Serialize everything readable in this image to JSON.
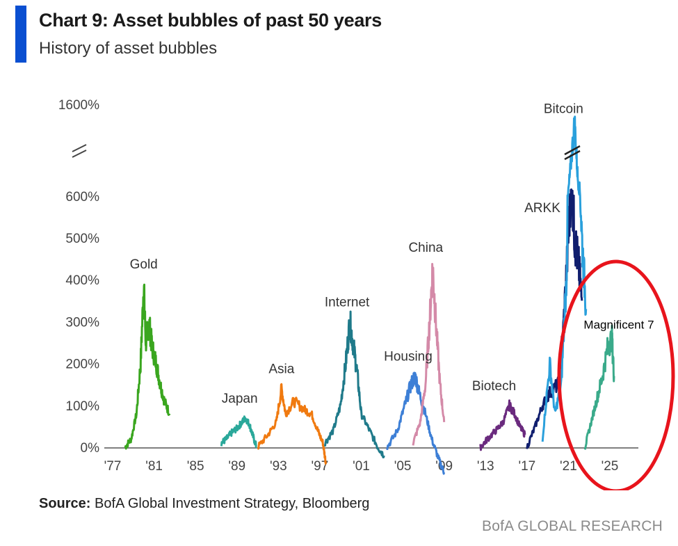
{
  "header": {
    "title": "Chart 9: Asset bubbles of past 50 years",
    "subtitle": "History of asset bubbles",
    "accent_color": "#0a4fd1"
  },
  "footer": {
    "source_label": "Source:",
    "source_text": " BofA Global Investment Strategy, Bloomberg",
    "brand": "BofA GLOBAL RESEARCH"
  },
  "chart_data": {
    "type": "line",
    "title": "Asset bubbles of past 50 years",
    "xlabel": "",
    "ylabel": "",
    "ylim": [
      0,
      1600
    ],
    "y_axis_break": true,
    "x_ticks": [
      "'77",
      "'81",
      "'85",
      "'89",
      "'93",
      "'97",
      "'01",
      "'05",
      "'09",
      "'13",
      "'17",
      "'21",
      "'25"
    ],
    "y_ticks": [
      {
        "value": 0,
        "label": "0%"
      },
      {
        "value": 100,
        "label": "100%"
      },
      {
        "value": 200,
        "label": "200%"
      },
      {
        "value": 300,
        "label": "300%"
      },
      {
        "value": 400,
        "label": "400%"
      },
      {
        "value": 500,
        "label": "500%"
      },
      {
        "value": 600,
        "label": "600%"
      },
      {
        "value": 1600,
        "label": "1600%"
      }
    ],
    "grid": false,
    "series": [
      {
        "name": "Gold",
        "color": "#3aa61f",
        "x": [
          1978.2,
          1978.8,
          1979.3,
          1979.7,
          1980.0,
          1980.2,
          1980.5,
          1980.8,
          1981.2,
          1981.6,
          1982.0,
          1982.5
        ],
        "values": [
          0,
          20,
          80,
          200,
          390,
          250,
          300,
          240,
          200,
          150,
          110,
          80
        ]
      },
      {
        "name": "Japan",
        "color": "#2aa89a",
        "x": [
          1987.5,
          1988.0,
          1988.5,
          1989.0,
          1989.5,
          1989.8,
          1990.2,
          1990.5,
          1990.9
        ],
        "values": [
          10,
          20,
          35,
          45,
          60,
          70,
          55,
          30,
          0
        ]
      },
      {
        "name": "Asia",
        "color": "#f07a10",
        "x": [
          1991.0,
          1992.0,
          1992.8,
          1993.3,
          1993.7,
          1994.5,
          1995.5,
          1996.2,
          1996.8,
          1997.3,
          1997.6
        ],
        "values": [
          0,
          30,
          60,
          140,
          80,
          110,
          90,
          80,
          40,
          10,
          -40
        ]
      },
      {
        "name": "Internet",
        "color": "#1f7a8a",
        "x": [
          1997.5,
          1998.3,
          1999.0,
          1999.5,
          1999.9,
          2000.2,
          2000.6,
          2001.0,
          2001.8,
          2002.6,
          2003.2
        ],
        "values": [
          10,
          40,
          100,
          200,
          300,
          250,
          180,
          80,
          40,
          0,
          -20
        ]
      },
      {
        "name": "Housing",
        "color": "#3d7fd6",
        "x": [
          2003.5,
          2004.5,
          2005.2,
          2005.8,
          2006.2,
          2006.6,
          2007.2,
          2007.8,
          2008.5,
          2009.0
        ],
        "values": [
          0,
          40,
          100,
          150,
          170,
          130,
          80,
          20,
          -30,
          -60
        ]
      },
      {
        "name": "China",
        "color": "#d48aa8",
        "x": [
          2006.0,
          2006.7,
          2007.2,
          2007.6,
          2007.9,
          2008.2,
          2008.6,
          2009.0
        ],
        "values": [
          10,
          60,
          150,
          300,
          430,
          300,
          150,
          60
        ]
      },
      {
        "name": "Biotech",
        "color": "#6a2a7e",
        "x": [
          2012.5,
          2013.2,
          2014.0,
          2014.7,
          2015.3,
          2015.8,
          2016.3,
          2016.8
        ],
        "values": [
          0,
          20,
          40,
          60,
          100,
          80,
          50,
          30
        ]
      },
      {
        "name": "ARKK",
        "color": "#101e6e",
        "x": [
          2017.0,
          2017.8,
          2018.5,
          2019.2,
          2020.0,
          2020.5,
          2021.0,
          2021.3,
          2021.6,
          2022.0,
          2022.3
        ],
        "values": [
          0,
          50,
          100,
          130,
          150,
          280,
          500,
          650,
          500,
          430,
          350
        ]
      },
      {
        "name": "Bitcoin",
        "color": "#2aa0dc",
        "x": [
          2018.5,
          2019.2,
          2019.7,
          2020.3,
          2020.8,
          2021.2,
          2021.6,
          2021.9,
          2022.3,
          2022.7
        ],
        "values": [
          20,
          200,
          80,
          150,
          400,
          900,
          1400,
          800,
          500,
          330
        ]
      },
      {
        "name": "Magnificent 7",
        "color": "#3aaa8a",
        "x": [
          2022.6,
          2023.2,
          2023.8,
          2024.3,
          2024.8,
          2025.2,
          2025.4
        ],
        "values": [
          0,
          60,
          120,
          170,
          240,
          260,
          170
        ]
      }
    ],
    "annotations": [
      {
        "text": "Gold",
        "series": "Gold"
      },
      {
        "text": "Japan",
        "series": "Japan"
      },
      {
        "text": "Asia",
        "series": "Asia"
      },
      {
        "text": "Internet",
        "series": "Internet"
      },
      {
        "text": "Housing",
        "series": "Housing"
      },
      {
        "text": "China",
        "series": "China"
      },
      {
        "text": "Biotech",
        "series": "Biotech"
      },
      {
        "text": "ARKK",
        "series": "ARKK"
      },
      {
        "text": "Bitcoin",
        "series": "Bitcoin"
      },
      {
        "text": "Magnificent 7",
        "series": "Magnificent 7"
      }
    ],
    "highlight_color": "#e8141c"
  }
}
